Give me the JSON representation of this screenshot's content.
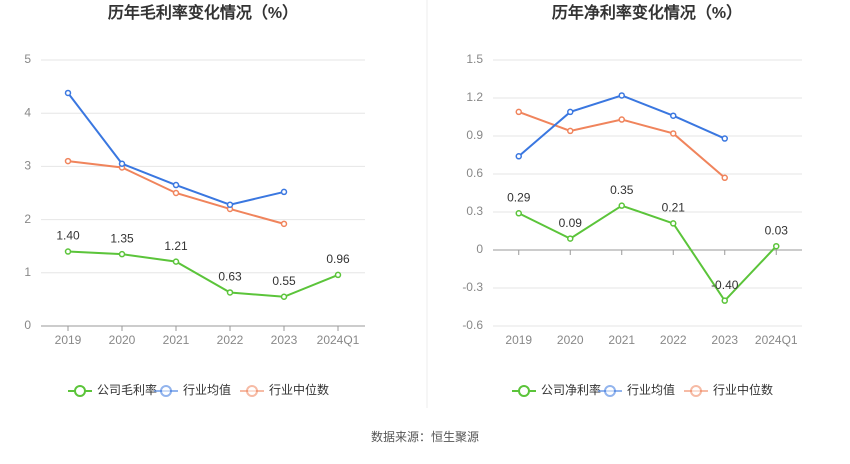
{
  "chart_data": [
    {
      "type": "line",
      "title": "历年毛利率变化情况（%）",
      "categories": [
        "2019",
        "2020",
        "2021",
        "2022",
        "2023",
        "2024Q1"
      ],
      "series": [
        {
          "name": "公司毛利率",
          "color": "#5bc43a",
          "values": [
            1.4,
            1.35,
            1.21,
            0.63,
            0.55,
            0.96
          ],
          "value_labels": [
            "1.40",
            "1.35",
            "1.21",
            "0.63",
            "0.55",
            "0.96"
          ]
        },
        {
          "name": "行业均值",
          "color": "#3a77e0",
          "values": [
            4.38,
            3.05,
            2.65,
            2.28,
            2.52,
            null
          ]
        },
        {
          "name": "行业中位数",
          "color": "#f0845c",
          "values": [
            3.1,
            2.98,
            2.5,
            2.2,
            1.92,
            null
          ]
        }
      ],
      "ylim": [
        0,
        5
      ],
      "yticks": [
        0,
        1,
        2,
        3,
        4,
        5
      ],
      "grid": true
    },
    {
      "type": "line",
      "title": "历年净利率变化情况（%）",
      "categories": [
        "2019",
        "2020",
        "2021",
        "2022",
        "2023",
        "2024Q1"
      ],
      "series": [
        {
          "name": "公司净利率",
          "color": "#5bc43a",
          "values": [
            0.29,
            0.09,
            0.35,
            0.21,
            -0.4,
            0.03
          ],
          "value_labels": [
            "0.29",
            "0.09",
            "0.35",
            "0.21",
            "-0.40",
            "0.03"
          ]
        },
        {
          "name": "行业均值",
          "color": "#3a77e0",
          "values": [
            0.74,
            1.09,
            1.22,
            1.06,
            0.88,
            null
          ]
        },
        {
          "name": "行业中位数",
          "color": "#f0845c",
          "values": [
            1.09,
            0.94,
            1.03,
            0.92,
            0.57,
            null
          ]
        }
      ],
      "ylim": [
        -0.6,
        1.5
      ],
      "yticks": [
        -0.6,
        -0.3,
        0,
        0.3,
        0.6,
        0.9,
        1.2,
        1.5
      ],
      "grid": true
    }
  ],
  "source": "数据来源：恒生聚源"
}
